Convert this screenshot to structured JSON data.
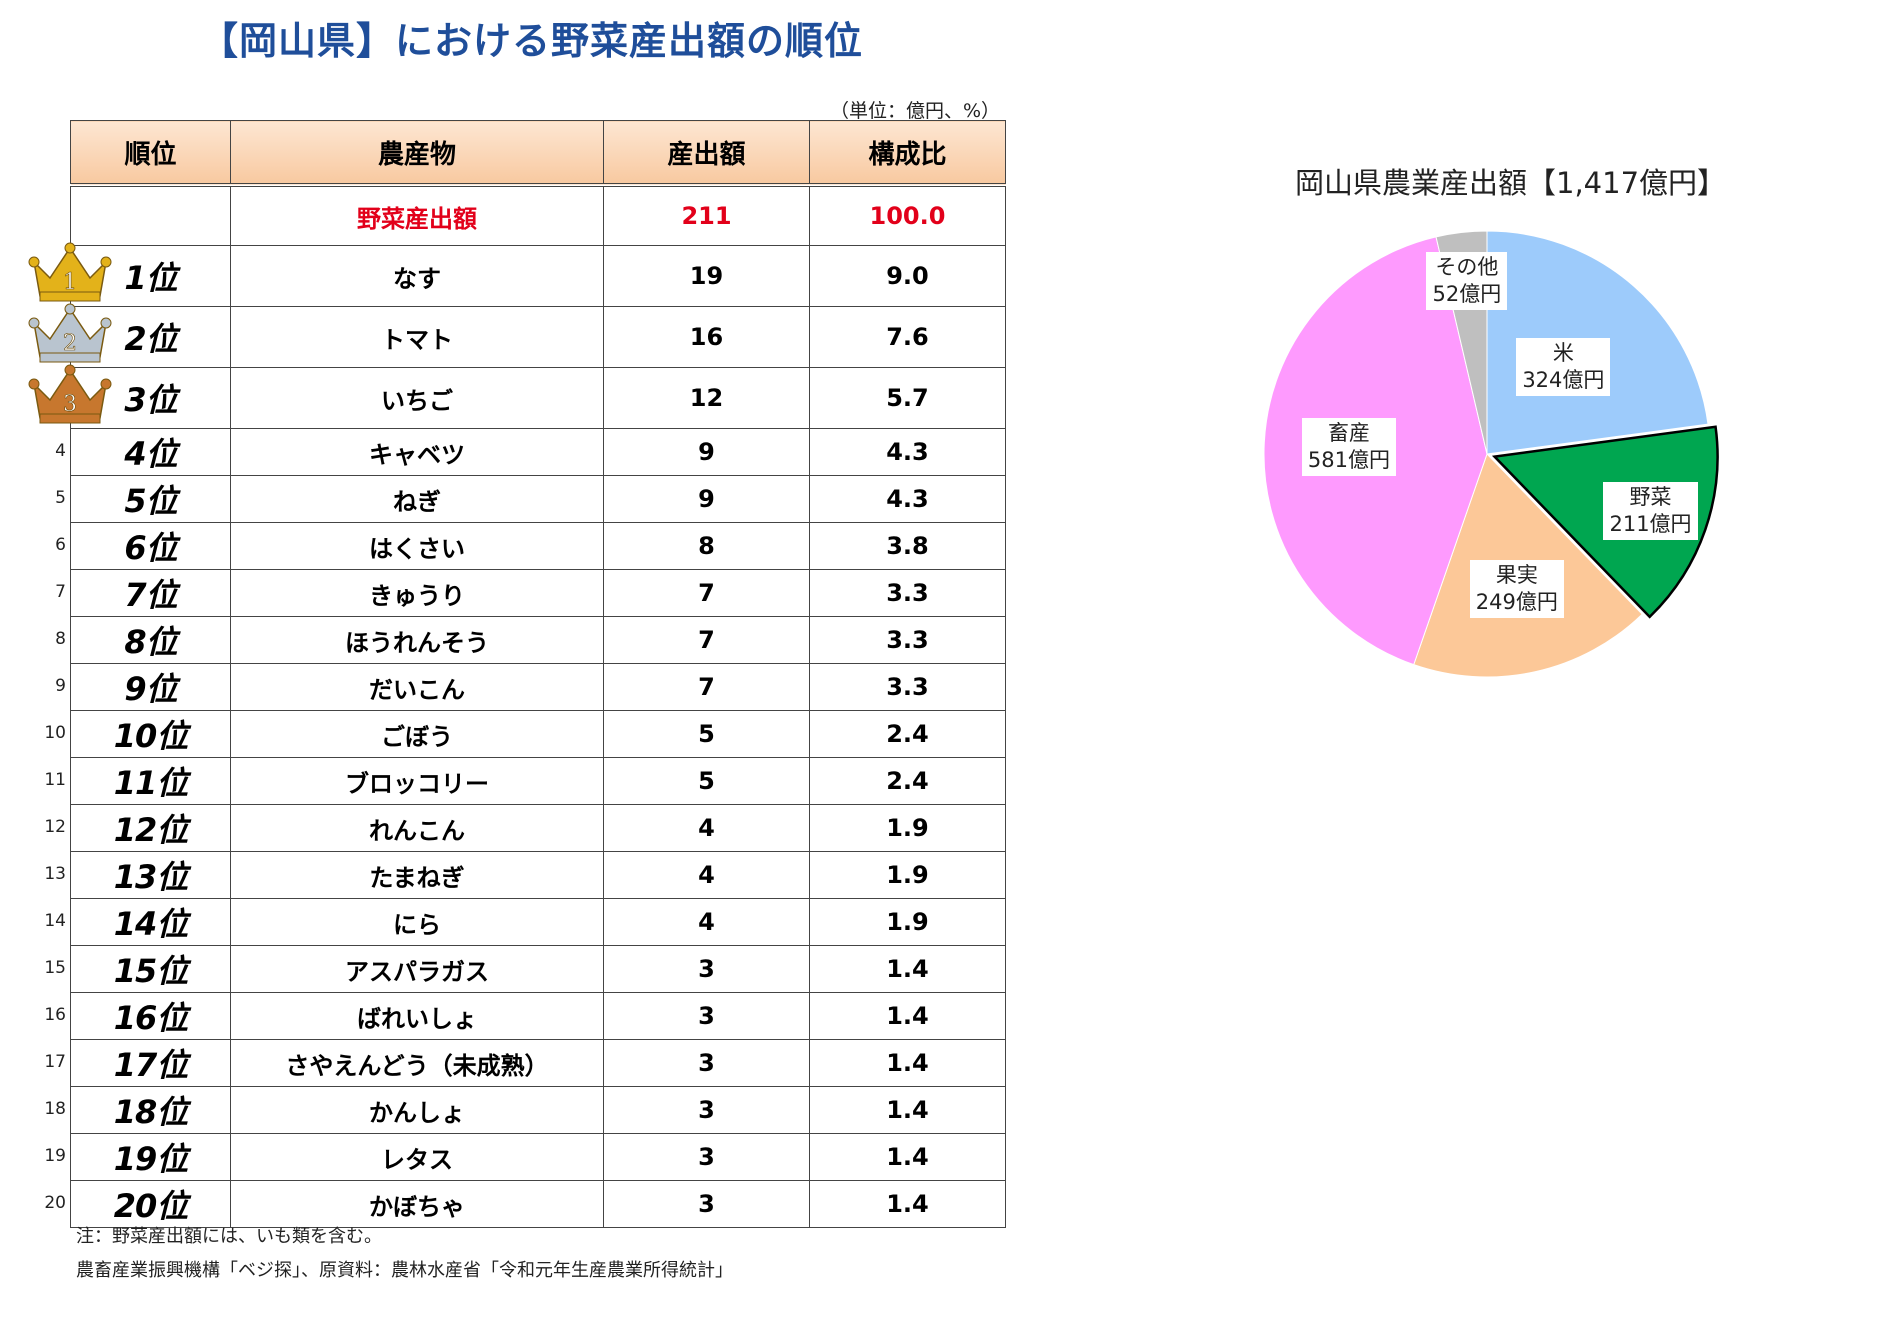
{
  "title": "【岡山県】における野菜産出額の順位",
  "unit_note": "（単位：億円、%）",
  "table": {
    "headers": [
      "順位",
      "農産物",
      "産出額",
      "構成比"
    ],
    "total": {
      "label": "野菜産出額",
      "value": "211",
      "share": "100.0"
    },
    "rows": [
      {
        "num": "",
        "rank": "1位",
        "item": "なす",
        "value": "19",
        "share": "9.0"
      },
      {
        "num": "",
        "rank": "2位",
        "item": "トマト",
        "value": "16",
        "share": "7.6"
      },
      {
        "num": "",
        "rank": "3位",
        "item": "いちご",
        "value": "12",
        "share": "5.7"
      },
      {
        "num": "4",
        "rank": "4位",
        "item": "キャベツ",
        "value": "9",
        "share": "4.3"
      },
      {
        "num": "5",
        "rank": "5位",
        "item": "ねぎ",
        "value": "9",
        "share": "4.3"
      },
      {
        "num": "6",
        "rank": "6位",
        "item": "はくさい",
        "value": "8",
        "share": "3.8"
      },
      {
        "num": "7",
        "rank": "7位",
        "item": "きゅうり",
        "value": "7",
        "share": "3.3"
      },
      {
        "num": "8",
        "rank": "8位",
        "item": "ほうれんそう",
        "value": "7",
        "share": "3.3"
      },
      {
        "num": "9",
        "rank": "9位",
        "item": "だいこん",
        "value": "7",
        "share": "3.3"
      },
      {
        "num": "10",
        "rank": "10位",
        "item": "ごぼう",
        "value": "5",
        "share": "2.4"
      },
      {
        "num": "11",
        "rank": "11位",
        "item": "ブロッコリー",
        "value": "5",
        "share": "2.4"
      },
      {
        "num": "12",
        "rank": "12位",
        "item": "れんこん",
        "value": "4",
        "share": "1.9"
      },
      {
        "num": "13",
        "rank": "13位",
        "item": "たまねぎ",
        "value": "4",
        "share": "1.9"
      },
      {
        "num": "14",
        "rank": "14位",
        "item": "にら",
        "value": "4",
        "share": "1.9"
      },
      {
        "num": "15",
        "rank": "15位",
        "item": "アスパラガス",
        "value": "3",
        "share": "1.4"
      },
      {
        "num": "16",
        "rank": "16位",
        "item": "ばれいしょ",
        "value": "3",
        "share": "1.4"
      },
      {
        "num": "17",
        "rank": "17位",
        "item": "さやえんどう（未成熟）",
        "value": "3",
        "share": "1.4"
      },
      {
        "num": "18",
        "rank": "18位",
        "item": "かんしょ",
        "value": "3",
        "share": "1.4"
      },
      {
        "num": "19",
        "rank": "19位",
        "item": "レタス",
        "value": "3",
        "share": "1.4"
      },
      {
        "num": "20",
        "rank": "20位",
        "item": "かぼちゃ",
        "value": "3",
        "share": "1.4"
      }
    ]
  },
  "crowns": [
    {
      "digit": "1",
      "color": "#e3b21a"
    },
    {
      "digit": "2",
      "color": "#b9c4cf"
    },
    {
      "digit": "3",
      "color": "#c7772e"
    }
  ],
  "notes": [
    "注：野菜産出額には、いも類を含む。",
    "農畜産業振興機構「ベジ探」、原資料：農林水産省「令和元年生産農業所得統計」"
  ],
  "chart_data": {
    "type": "pie",
    "title": "岡山県農業産出額【1,417億円】",
    "slices": [
      {
        "name": "米",
        "label": "324億円",
        "value": 324,
        "color": "#9dcbfb"
      },
      {
        "name": "野菜",
        "label": "211億円",
        "value": 211,
        "color": "#00a650",
        "exploded": true
      },
      {
        "name": "果実",
        "label": "249億円",
        "value": 249,
        "color": "#fcc898"
      },
      {
        "name": "畜産",
        "label": "581億円",
        "value": 581,
        "color": "#fe9afe"
      },
      {
        "name": "その他",
        "label": "52億円",
        "value": 52,
        "color": "#bfbfbf"
      }
    ]
  }
}
